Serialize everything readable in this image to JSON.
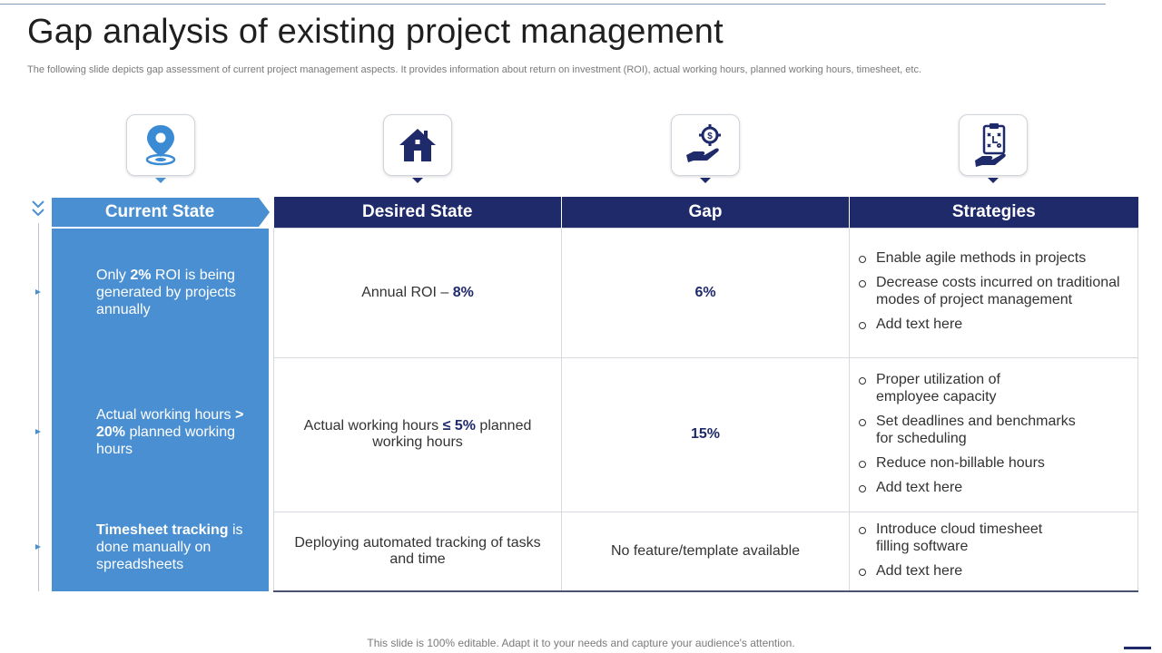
{
  "slide": {
    "title": "Gap analysis of existing project management",
    "subtitle": "The following slide depicts gap assessment of current project management aspects. It provides information about return on investment (ROI), actual working hours, planned working hours, timesheet, etc.",
    "footer": "This slide is 100% editable. Adapt it to your needs and capture your audience's attention."
  },
  "icons": [
    "location-pin-icon",
    "house-icon",
    "money-hand-gear-icon",
    "clipboard-hand-icon"
  ],
  "headers": {
    "current": "Current State",
    "desired": "Desired State",
    "gap": "Gap",
    "strategies": "Strategies"
  },
  "rows": [
    {
      "current": {
        "pre": "Only ",
        "bold1": "2%",
        "mid": " ROI is being generated by projects annually",
        "bold2": "",
        "post": ""
      },
      "desired": {
        "pre": "Annual ROI – ",
        "bold": "8%",
        "post": ""
      },
      "gap": "6%",
      "strategies": [
        "Enable agile methods in projects",
        "Decrease costs incurred on traditional modes of project management",
        "Add text here"
      ]
    },
    {
      "current": {
        "pre": "Actual working hours ",
        "bold1": "> 20%",
        "mid": " planned working hours",
        "bold2": "",
        "post": ""
      },
      "desired": {
        "pre": "Actual working hours ",
        "bold": "≤ 5%",
        "post": " planned working hours"
      },
      "gap": "15%",
      "strategies": [
        "Proper utilization of employee capacity",
        "Set deadlines and benchmarks for scheduling",
        "Reduce non-billable hours",
        "Add text here"
      ]
    },
    {
      "current": {
        "pre": "",
        "bold1": "Timesheet tracking",
        "mid": " is done manually on spreadsheets",
        "bold2": "",
        "post": ""
      },
      "desired": {
        "pre": "Deploying automated tracking of tasks and time",
        "bold": "",
        "post": ""
      },
      "gap": "No feature/template  available",
      "strategies": [
        "Introduce  cloud timesheet filling software",
        "Add text here"
      ]
    }
  ],
  "colors": {
    "navy": "#1f2a6b",
    "blue": "#4a8fd1",
    "border": "#d6d9df"
  }
}
